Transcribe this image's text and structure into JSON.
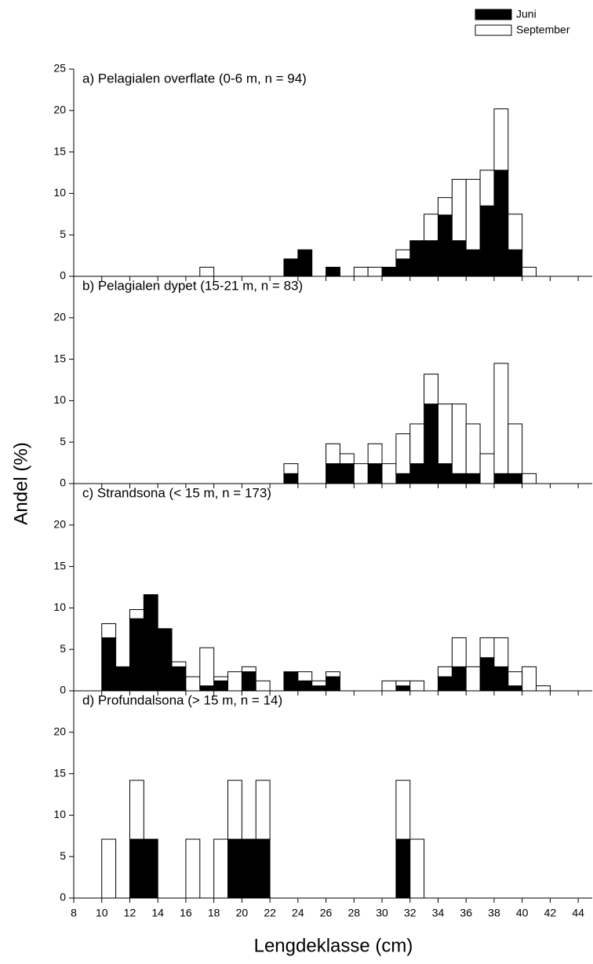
{
  "xlabel": "Lengdeklasse (cm)",
  "ylabel": "Andel (%)",
  "chart_data": [
    {
      "type": "histogram",
      "title": "a) Pelagialen overflate (0-6 m, n = 94)",
      "bins": [
        10,
        11,
        12,
        13,
        14,
        15,
        16,
        17,
        18,
        19,
        20,
        21,
        22,
        23,
        24,
        25,
        26,
        27,
        28,
        29,
        30,
        31,
        32,
        33,
        34,
        35,
        36,
        37,
        38,
        39,
        40,
        41,
        42
      ],
      "series": [
        {
          "name": "Juni",
          "color": "#000000",
          "values": [
            0,
            0,
            0,
            0,
            0,
            0,
            0,
            0,
            0,
            0,
            0,
            0,
            0,
            2.1,
            3.2,
            0,
            1.1,
            0,
            0,
            0,
            1.1,
            2.1,
            4.3,
            4.3,
            7.4,
            4.3,
            3.2,
            8.5,
            12.8,
            3.2,
            0,
            0
          ]
        },
        {
          "name": "September",
          "color": "#ffffff",
          "values": [
            0,
            0,
            0,
            0,
            0,
            0,
            0,
            1.1,
            0,
            0,
            0,
            0,
            0,
            0,
            0,
            0,
            0,
            0,
            1.1,
            1.1,
            0,
            1.1,
            0,
            3.2,
            2.1,
            7.4,
            8.5,
            4.3,
            7.4,
            4.3,
            1.1,
            0
          ]
        }
      ],
      "xlim": [
        8,
        45
      ],
      "ylim": [
        0,
        25
      ],
      "yticks": [
        0,
        5,
        10,
        15,
        20,
        25
      ],
      "xticks": [
        8,
        10,
        12,
        14,
        16,
        18,
        20,
        22,
        24,
        26,
        28,
        30,
        32,
        34,
        36,
        38,
        40,
        42,
        44
      ]
    },
    {
      "type": "histogram",
      "title": "b) Pelagialen dypet (15-21 m, n = 83)",
      "bins": [
        10,
        11,
        12,
        13,
        14,
        15,
        16,
        17,
        18,
        19,
        20,
        21,
        22,
        23,
        24,
        25,
        26,
        27,
        28,
        29,
        30,
        31,
        32,
        33,
        34,
        35,
        36,
        37,
        38,
        39,
        40,
        41,
        42
      ],
      "series": [
        {
          "name": "Juni",
          "color": "#000000",
          "values": [
            0,
            0,
            0,
            0,
            0,
            0,
            0,
            0,
            0,
            0,
            0,
            0,
            0,
            1.2,
            0,
            0,
            2.4,
            2.4,
            0,
            2.4,
            0,
            1.2,
            2.4,
            9.6,
            2.4,
            1.2,
            1.2,
            0,
            1.2,
            1.2,
            0,
            0
          ]
        },
        {
          "name": "September",
          "color": "#ffffff",
          "values": [
            0,
            0,
            0,
            0,
            0,
            0,
            0,
            0,
            0,
            0,
            0,
            0,
            0,
            1.2,
            0,
            0,
            2.4,
            1.2,
            2.4,
            2.4,
            2.4,
            4.8,
            4.8,
            3.6,
            7.2,
            8.4,
            6.0,
            3.6,
            13.3,
            6.0,
            1.2,
            0
          ]
        }
      ],
      "xlim": [
        8,
        45
      ],
      "ylim": [
        0,
        25
      ],
      "yticks": [
        0,
        5,
        10,
        15,
        20
      ],
      "xticks": [
        8,
        10,
        12,
        14,
        16,
        18,
        20,
        22,
        24,
        26,
        28,
        30,
        32,
        34,
        36,
        38,
        40,
        42,
        44
      ]
    },
    {
      "type": "histogram",
      "title": "c) Strandsona (< 15 m, n = 173)",
      "bins": [
        10,
        11,
        12,
        13,
        14,
        15,
        16,
        17,
        18,
        19,
        20,
        21,
        22,
        23,
        24,
        25,
        26,
        27,
        28,
        29,
        30,
        31,
        32,
        33,
        34,
        35,
        36,
        37,
        38,
        39,
        40,
        41,
        42
      ],
      "series": [
        {
          "name": "Juni",
          "color": "#000000",
          "values": [
            6.4,
            2.9,
            8.7,
            11.6,
            7.5,
            2.9,
            0,
            0.6,
            1.2,
            0,
            2.3,
            0,
            0,
            2.3,
            1.2,
            0.6,
            1.7,
            0,
            0,
            0,
            0,
            0.6,
            0,
            0,
            1.7,
            2.9,
            0,
            4.0,
            2.9,
            0.6,
            0,
            0
          ]
        },
        {
          "name": "September",
          "color": "#ffffff",
          "values": [
            1.7,
            0,
            1.1,
            0,
            0,
            0.6,
            1.7,
            4.6,
            0.5,
            2.3,
            0.6,
            1.2,
            0,
            0,
            1.1,
            0.6,
            0.6,
            0,
            0,
            0,
            1.2,
            0.6,
            1.2,
            0,
            1.2,
            3.5,
            2.9,
            2.4,
            3.5,
            1.7,
            2.9,
            0.6
          ]
        }
      ],
      "xlim": [
        8,
        45
      ],
      "ylim": [
        0,
        25
      ],
      "yticks": [
        0,
        5,
        10,
        15,
        20
      ],
      "xticks": [
        8,
        10,
        12,
        14,
        16,
        18,
        20,
        22,
        24,
        26,
        28,
        30,
        32,
        34,
        36,
        38,
        40,
        42,
        44
      ]
    },
    {
      "type": "histogram",
      "title": "d) Profundalsona (> 15 m, n = 14)",
      "bins": [
        10,
        11,
        12,
        13,
        14,
        15,
        16,
        17,
        18,
        19,
        20,
        21,
        22,
        23,
        24,
        25,
        26,
        27,
        28,
        29,
        30,
        31,
        32,
        33,
        34,
        35,
        36,
        37,
        38,
        39,
        40,
        41,
        42
      ],
      "series": [
        {
          "name": "Juni",
          "color": "#000000",
          "values": [
            0,
            0,
            7.1,
            7.1,
            0,
            0,
            0,
            0,
            0,
            7.1,
            7.1,
            7.1,
            0,
            0,
            0,
            0,
            0,
            0,
            0,
            0,
            0,
            7.1,
            0,
            0,
            0,
            0,
            0,
            0,
            0,
            0,
            0,
            0
          ]
        },
        {
          "name": "September",
          "color": "#ffffff",
          "values": [
            7.1,
            0,
            7.1,
            0,
            0,
            0,
            7.1,
            0,
            7.1,
            7.1,
            0,
            7.1,
            0,
            0,
            0,
            0,
            0,
            0,
            0,
            0,
            0,
            7.1,
            7.1,
            0,
            0,
            0,
            0,
            0,
            0,
            0,
            0,
            0
          ]
        }
      ],
      "xlim": [
        8,
        45
      ],
      "ylim": [
        0,
        25
      ],
      "yticks": [
        0,
        5,
        10,
        15,
        20
      ],
      "xticks": [
        8,
        10,
        12,
        14,
        16,
        18,
        20,
        22,
        24,
        26,
        28,
        30,
        32,
        34,
        36,
        38,
        40,
        42,
        44
      ]
    }
  ]
}
